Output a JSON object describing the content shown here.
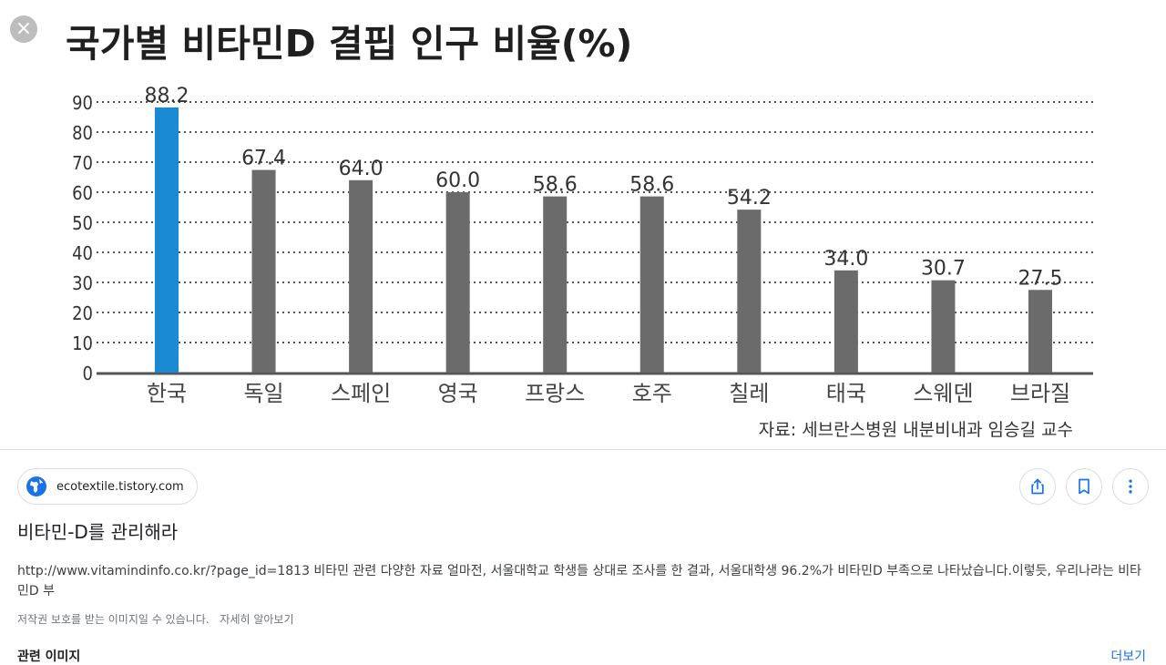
{
  "close_label": "×",
  "chart_data": {
    "type": "bar",
    "title": "국가별 비타민D 결핍 인구 비율(%)",
    "categories": [
      "한국",
      "독일",
      "스페인",
      "영국",
      "프랑스",
      "호주",
      "칠레",
      "태국",
      "스웨덴",
      "브라질"
    ],
    "values": [
      88.2,
      67.4,
      64.0,
      60.0,
      58.6,
      58.6,
      54.2,
      34.0,
      30.7,
      27.5
    ],
    "value_labels": [
      "88.2",
      "67.4",
      "64.0",
      "60.0",
      "58.6",
      "58.6",
      "54.2",
      "34.0",
      "30.7",
      "27.5"
    ],
    "yticks": [
      0,
      10,
      20,
      30,
      40,
      50,
      60,
      70,
      80,
      90
    ],
    "ylim": [
      0,
      90
    ],
    "grid": true,
    "highlight_color": "#1a8ad4",
    "bar_color": "#6b6b6b",
    "source": "자료: 세브란스병원 내분비내과 임승길 교수"
  },
  "result": {
    "site": "ecotextile.tistory.com",
    "title": "비타민-D를 관리해라",
    "snippet": "http://www.vitamindinfo.co.kr/?page_id=1813 비타민 관련 다양한 자료 얼마전, 서울대학교 학생들 상대로 조사를 한 결과, 서울대학생 96.2%가 비타민D 부족으로 나타났습니다.이렇듯, 우리나라는 비타민D 부",
    "copyright": "저작권 보호를 받는 이미지일 수 있습니다.",
    "learn_more": "자세히 알아보기",
    "related_heading": "관련 이미지",
    "see_more": "더보기"
  },
  "icons": [
    "close-icon",
    "globe-icon",
    "share-icon",
    "bookmark-icon",
    "more-vert-icon"
  ],
  "colors": {
    "link": "#1a73e8",
    "divider": "#dadce0"
  }
}
